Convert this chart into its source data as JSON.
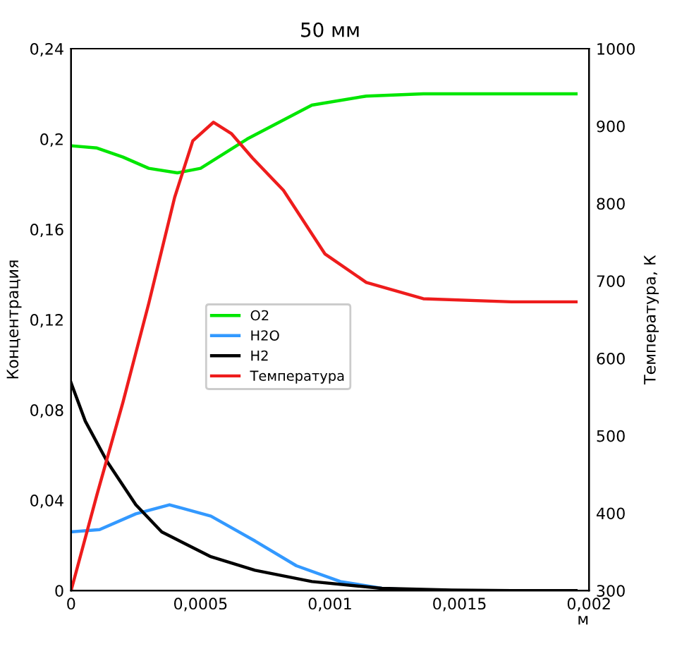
{
  "chart_data": {
    "type": "line",
    "title": "50 мм",
    "xlabel": "м",
    "ylabel": "Концентрация",
    "y2label": "Температура, К",
    "xlim": [
      0,
      0.002
    ],
    "xticks": [
      {
        "value": 0,
        "label": "0"
      },
      {
        "value": 0.0005,
        "label": "0,0005"
      },
      {
        "value": 0.001,
        "label": "0,001"
      },
      {
        "value": 0.0015,
        "label": "0,0015"
      },
      {
        "value": 0.002,
        "label": "0,002"
      }
    ],
    "ylim": [
      0,
      0.24
    ],
    "yticks": [
      {
        "value": 0,
        "label": "0"
      },
      {
        "value": 0.04,
        "label": "0,04"
      },
      {
        "value": 0.08,
        "label": "0,08"
      },
      {
        "value": 0.12,
        "label": "0,12"
      },
      {
        "value": 0.16,
        "label": "0,16"
      },
      {
        "value": 0.2,
        "label": "0,2"
      },
      {
        "value": 0.24,
        "label": "0,24"
      }
    ],
    "y2lim": [
      300,
      1000
    ],
    "y2ticks": [
      300,
      400,
      500,
      600,
      700,
      800,
      900,
      1000
    ],
    "legend": "center",
    "grid": false,
    "series": [
      {
        "name": "O2",
        "color": "#00e600",
        "x": [
          0,
          0.0001,
          0.0002,
          0.0003,
          0.00041,
          0.0005,
          0.00068,
          0.00093,
          0.00114,
          0.00136,
          0.0017,
          0.00195
        ],
        "values": [
          0.197,
          0.196,
          0.192,
          0.187,
          0.185,
          0.187,
          0.2,
          0.215,
          0.219,
          0.22,
          0.22,
          0.22
        ]
      },
      {
        "name": "H2O",
        "color": "#3399ff",
        "x": [
          0,
          0.00011,
          0.00025,
          0.00038,
          0.00054,
          0.00071,
          0.00087,
          0.00104,
          0.0012,
          0.00136
        ],
        "values": [
          0.026,
          0.027,
          0.034,
          0.038,
          0.033,
          0.022,
          0.011,
          0.004,
          0.001,
          0.0
        ]
      },
      {
        "name": "H2",
        "color": "#000000",
        "x": [
          0,
          5.5e-05,
          0.00014,
          0.00025,
          0.00035,
          0.00054,
          0.00071,
          0.00093,
          0.0012,
          0.00147,
          0.0017,
          0.00195
        ],
        "values": [
          0.092,
          0.075,
          0.057,
          0.038,
          0.026,
          0.015,
          0.009,
          0.004,
          0.001,
          0.0002,
          0.0,
          0.0
        ]
      },
      {
        "name": "Температура",
        "color": "#ee1c1c",
        "axis": "y2",
        "x": [
          0,
          0.0001,
          0.0002,
          0.0003,
          0.0004,
          0.00047,
          0.00055,
          0.00062,
          0.0007,
          0.00082,
          0.00098,
          0.00114,
          0.00136,
          0.0017,
          0.00195
        ],
        "values": [
          300,
          424,
          543,
          671,
          808,
          881,
          905,
          890,
          859,
          817,
          735,
          698,
          677,
          673,
          673
        ]
      }
    ]
  }
}
